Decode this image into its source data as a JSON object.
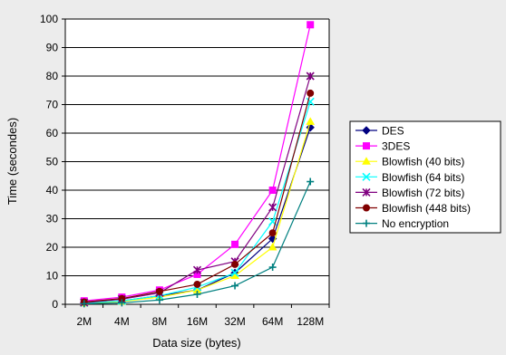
{
  "chart_data": {
    "type": "line",
    "title": "",
    "xlabel": "Data size (bytes)",
    "ylabel": "Time (secondes)",
    "ylim": [
      0,
      100
    ],
    "y_ticks": [
      0,
      10,
      20,
      30,
      40,
      50,
      60,
      70,
      80,
      90,
      100
    ],
    "grid": "horizontal",
    "legend_position": "right",
    "categories": [
      "2M",
      "4M",
      "8M",
      "16M",
      "32M",
      "64M",
      "128M"
    ],
    "series": [
      {
        "name": "DES",
        "color": "#000080",
        "marker": "diamond",
        "values": [
          0.5,
          1.2,
          3.0,
          5.0,
          11.0,
          23.0,
          62.0
        ]
      },
      {
        "name": "3DES",
        "color": "#ff00ff",
        "marker": "square",
        "values": [
          1.2,
          2.5,
          5.0,
          10.5,
          21.0,
          40.0,
          98.0
        ]
      },
      {
        "name": "Blowfish (40 bits)",
        "color": "#ffff00",
        "marker": "triangle",
        "values": [
          0.4,
          1.0,
          2.5,
          5.0,
          10.0,
          20.0,
          64.0
        ]
      },
      {
        "name": "Blowfish (64 bits)",
        "color": "#00ffff",
        "marker": "x",
        "values": [
          0.5,
          1.2,
          3.0,
          6.0,
          11.0,
          29.0,
          71.0
        ]
      },
      {
        "name": "Blowfish (72 bits)",
        "color": "#800080",
        "marker": "star",
        "values": [
          0.6,
          1.8,
          4.0,
          12.0,
          15.0,
          34.0,
          80.0
        ]
      },
      {
        "name": "Blowfish (448 bits)",
        "color": "#800000",
        "marker": "circle",
        "values": [
          0.8,
          2.0,
          4.5,
          7.0,
          14.0,
          25.0,
          74.0
        ]
      },
      {
        "name": "No encryption",
        "color": "#008080",
        "marker": "plus",
        "values": [
          0.2,
          0.5,
          1.5,
          3.5,
          6.5,
          13.0,
          43.0
        ]
      }
    ]
  }
}
